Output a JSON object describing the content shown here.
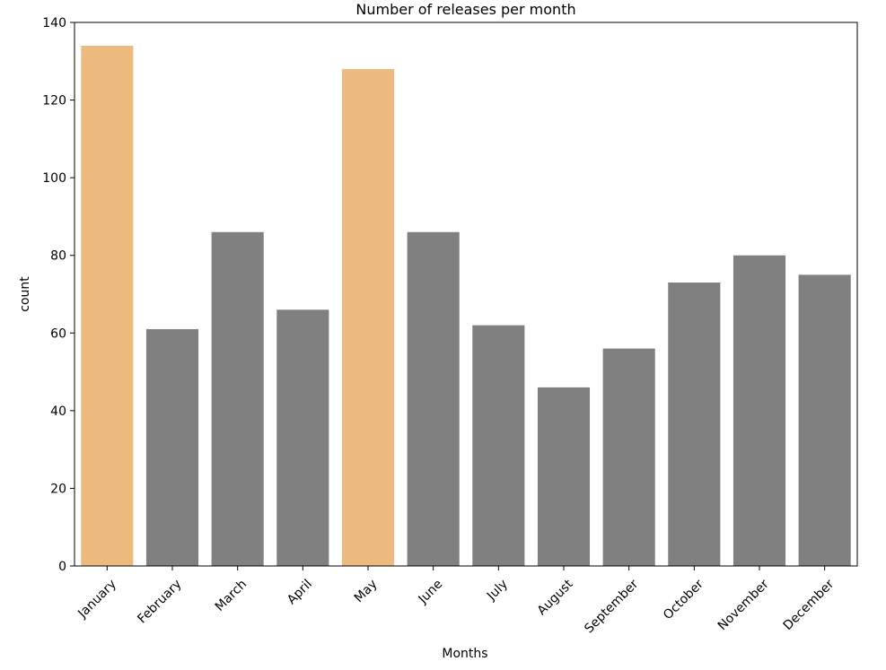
{
  "chart_data": {
    "type": "bar",
    "title": "Number of releases per month",
    "xlabel": "Months",
    "ylabel": "count",
    "categories": [
      "January",
      "February",
      "March",
      "April",
      "May",
      "June",
      "July",
      "August",
      "September",
      "October",
      "November",
      "December"
    ],
    "values": [
      134,
      61,
      86,
      66,
      128,
      86,
      62,
      46,
      56,
      73,
      80,
      75
    ],
    "highlighted": [
      "January",
      "May"
    ],
    "ylim": [
      0,
      140
    ],
    "yticks": [
      0,
      20,
      40,
      60,
      80,
      100,
      120,
      140
    ],
    "grid": false,
    "colors": {
      "highlight": "#EDBA7E",
      "default": "#808080"
    }
  }
}
